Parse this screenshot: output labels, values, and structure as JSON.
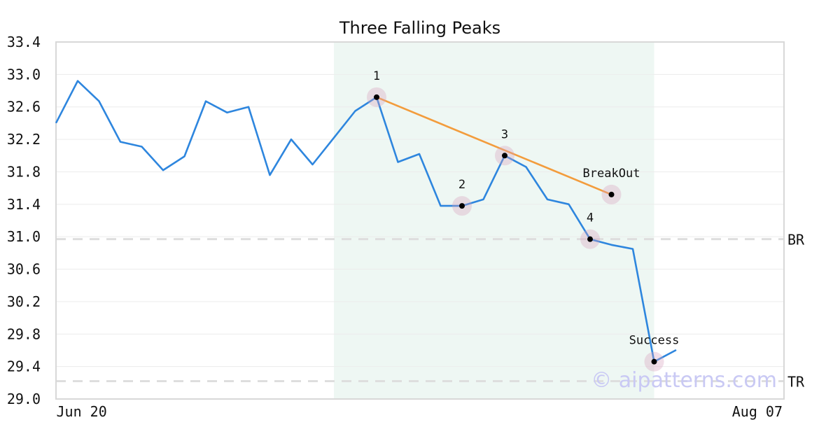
{
  "chart_data": {
    "type": "line",
    "title": "Three Falling Peaks",
    "xlabel": "",
    "ylabel": "",
    "ylim": [
      29.0,
      33.4
    ],
    "yticks": [
      "29.0",
      "29.4",
      "29.8",
      "30.2",
      "30.6",
      "31.0",
      "31.4",
      "31.8",
      "32.2",
      "32.6",
      "33.0",
      "33.4"
    ],
    "x_tick_labels": [
      {
        "index": 0,
        "label": "Jun 20"
      },
      {
        "index": 34,
        "label": "Aug 07"
      }
    ],
    "x_count": 35,
    "grid": "horizontal",
    "series": [
      {
        "color": "#2e86de",
        "values": [
          32.41,
          32.92,
          32.67,
          32.17,
          32.11,
          31.82,
          31.99,
          32.67,
          32.53,
          32.6,
          31.76,
          32.2,
          31.89,
          32.22,
          32.55,
          32.72,
          31.92,
          32.02,
          31.38,
          31.38,
          31.46,
          32.0,
          31.86,
          31.46,
          31.4,
          30.97,
          30.9,
          30.85,
          29.46,
          29.6
        ]
      }
    ],
    "trendline": {
      "color": "#f39c3c",
      "from": {
        "index": 15,
        "value": 32.72
      },
      "to": {
        "index": 26,
        "value": 31.52
      }
    },
    "highlight_region": {
      "from_index": 13,
      "to_index": 28,
      "color": "#eef7f3"
    },
    "levels": [
      {
        "label": "BR",
        "value": 30.97
      },
      {
        "label": "TR",
        "value": 29.22
      }
    ],
    "annotations": [
      {
        "label": "1",
        "index": 15,
        "value": 32.72,
        "placement": "above"
      },
      {
        "label": "2",
        "index": 19,
        "value": 31.38,
        "placement": "above"
      },
      {
        "label": "3",
        "index": 21,
        "value": 32.0,
        "placement": "above"
      },
      {
        "label": "4",
        "index": 25,
        "value": 30.97,
        "placement": "above"
      },
      {
        "label": "BreakOut",
        "index": 26,
        "value": 31.52,
        "placement": "above"
      },
      {
        "label": "Success",
        "index": 28,
        "value": 29.46,
        "placement": "above"
      }
    ],
    "watermark": "© aipatterns.com"
  }
}
